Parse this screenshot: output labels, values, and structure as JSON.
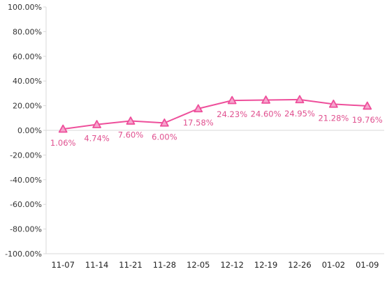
{
  "chart_data": {
    "type": "line",
    "title": "",
    "xlabel": "",
    "ylabel": "",
    "categories": [
      "11-07",
      "11-14",
      "11-21",
      "11-28",
      "12-05",
      "12-12",
      "12-19",
      "12-26",
      "01-02",
      "01-09"
    ],
    "series": [
      {
        "values": [
          1.06,
          4.74,
          7.6,
          6.0,
          17.58,
          24.23,
          24.6,
          24.95,
          21.28,
          19.76
        ],
        "labels": [
          "1.06%",
          "4.74%",
          "7.60%",
          "6.00%",
          "17.58%",
          "24.23%",
          "24.60%",
          "24.95%",
          "21.28%",
          "19.76%"
        ],
        "color": "#ee4f9b",
        "marker": "triangle"
      }
    ],
    "ylim": [
      -100,
      100
    ],
    "yticks": [
      100,
      80,
      60,
      40,
      20,
      0,
      -20,
      -40,
      -60,
      -80,
      -100
    ],
    "ytick_labels": [
      "100.00%",
      "80.00%",
      "60.00%",
      "40.00%",
      "20.00%",
      "0.00%",
      "-20.00%",
      "-40.00%",
      "-60.00%",
      "-80.00%",
      "-100.00%"
    ],
    "grid": false,
    "legend": "none",
    "colors": {
      "line": "#ee4f9b",
      "marker_fill": "#f6a5cd",
      "label": "#e0508f",
      "axis": "#d9d9d9",
      "text": "#333333"
    }
  }
}
